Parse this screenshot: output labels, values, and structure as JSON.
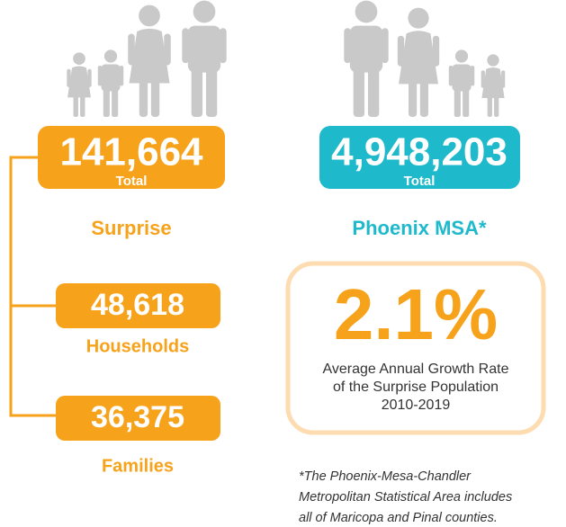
{
  "surprise": {
    "total": {
      "value": "141,664",
      "label": "Total"
    },
    "name": "Surprise",
    "households": {
      "value": "48,618",
      "label": "Households"
    },
    "families": {
      "value": "36,375",
      "label": "Families"
    }
  },
  "phoenix": {
    "total": {
      "value": "4,948,203",
      "label": "Total"
    },
    "name": "Phoenix MSA*"
  },
  "growth": {
    "value": "2.1%",
    "lines": [
      "Average Annual Growth Rate",
      "of the Surprise Population",
      "2010-2019"
    ]
  },
  "footnote": [
    "*The Phoenix-Mesa-Chandler",
    "Metropolitan Statistical Area includes",
    "all of Maricopa and Pinal counties."
  ]
}
